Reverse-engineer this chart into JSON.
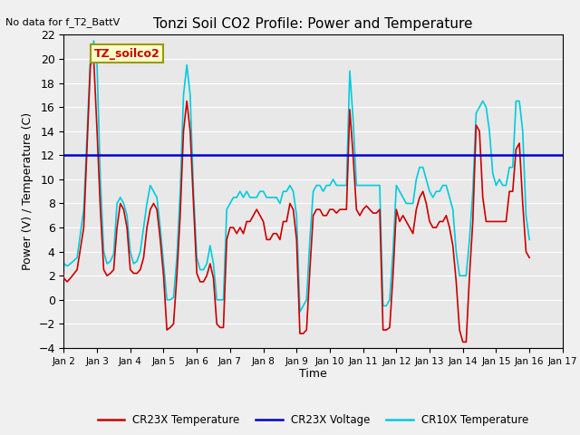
{
  "title": "Tonzi Soil CO2 Profile: Power and Temperature",
  "no_data_text": "No data for f_T2_BattV",
  "legend_box_text": "TZ_soilco2",
  "xlabel": "Time",
  "ylabel": "Power (V) / Temperature (C)",
  "ylim": [
    -4,
    22
  ],
  "yticks": [
    -4,
    -2,
    0,
    2,
    4,
    6,
    8,
    10,
    12,
    14,
    16,
    18,
    20,
    22
  ],
  "xlim_days": [
    1,
    16
  ],
  "xtick_positions": [
    1,
    2,
    3,
    4,
    5,
    6,
    7,
    8,
    9,
    10,
    11,
    12,
    13,
    14,
    15,
    16
  ],
  "xtick_labels": [
    "Jan 2",
    "Jan 3",
    "Jan 4",
    "Jan 5",
    "Jan 6",
    "Jan 7",
    "Jan 8",
    "Jan 9",
    "Jan 10",
    "Jan 11",
    "Jan 12",
    "Jan 13",
    "Jan 14",
    "Jan 15",
    "Jan 16",
    "Jan 17"
  ],
  "voltage_value": 12.0,
  "cr23x_color": "#cc0000",
  "voltage_color": "#0000cc",
  "cr10x_color": "#00ccdd",
  "background_color": "#e8e8e8",
  "legend_entries": [
    "CR23X Temperature",
    "CR23X Voltage",
    "CR10X Temperature"
  ],
  "cr23x_x": [
    0.0,
    0.1,
    0.2,
    0.35,
    0.5,
    0.65,
    0.8,
    1.0,
    1.1,
    1.2,
    1.4,
    1.6,
    1.8,
    1.9,
    2.0,
    2.1,
    2.2,
    2.3,
    2.4,
    2.5,
    2.6,
    2.7,
    2.8,
    2.9,
    3.0,
    3.1,
    3.2,
    3.3,
    3.4,
    3.5,
    3.6,
    3.7,
    3.8,
    3.9,
    4.0,
    4.1,
    4.2,
    4.3,
    4.4,
    4.5,
    4.6,
    4.7,
    4.8,
    4.9,
    5.0,
    5.1,
    5.2,
    5.3,
    5.4,
    5.5,
    5.6,
    5.7,
    5.8,
    5.9,
    6.0,
    6.1,
    6.2,
    6.3,
    6.4,
    6.5,
    6.6,
    6.7,
    6.8,
    6.9,
    7.0,
    7.1,
    7.2,
    7.3,
    7.4,
    7.5,
    7.6,
    7.7,
    7.8,
    7.9,
    8.0,
    8.1,
    8.2,
    8.3,
    8.4,
    8.5,
    8.6,
    8.7,
    8.8,
    8.9,
    9.0,
    9.1,
    9.2,
    9.3,
    9.4,
    9.5,
    9.6,
    9.7,
    9.8,
    9.9,
    10.0,
    10.1,
    10.2,
    10.3,
    10.4,
    10.5,
    10.6,
    10.7,
    10.8,
    10.9,
    11.0,
    11.1,
    11.2,
    11.3,
    11.4,
    11.5,
    11.6,
    11.7,
    11.8,
    11.9,
    12.0,
    12.1,
    12.2,
    12.3,
    12.4,
    12.5,
    12.6,
    12.7,
    12.8,
    12.9,
    13.0,
    13.1,
    13.2,
    13.3,
    13.4,
    13.5,
    13.6,
    13.7,
    13.8,
    13.9,
    14.0,
    14.1,
    14.2,
    14.3,
    14.4,
    14.5,
    14.6,
    14.7,
    14.8,
    14.9,
    15.0
  ],
  "cr23x_y": [
    0.5,
    2.0,
    5.0,
    12.0,
    19.0,
    14.0,
    5.0,
    1.8,
    1.5,
    1.8,
    2.5,
    6.0,
    19.5,
    20.0,
    14.0,
    7.5,
    2.5,
    2.0,
    2.2,
    2.5,
    6.0,
    8.0,
    7.5,
    6.0,
    2.5,
    2.2,
    2.2,
    2.5,
    3.5,
    6.0,
    7.5,
    8.0,
    7.5,
    5.0,
    2.0,
    -2.5,
    -2.3,
    -2.0,
    2.0,
    7.0,
    14.0,
    16.5,
    14.0,
    8.0,
    2.2,
    1.5,
    1.5,
    2.0,
    3.0,
    1.8,
    -2.0,
    -2.3,
    -2.3,
    5.0,
    6.0,
    6.0,
    5.5,
    6.0,
    5.5,
    6.5,
    6.5,
    7.0,
    7.5,
    7.0,
    6.5,
    5.0,
    5.0,
    5.5,
    5.5,
    5.0,
    6.5,
    6.5,
    8.0,
    7.5,
    5.0,
    -2.8,
    -2.8,
    -2.5,
    2.5,
    7.0,
    7.5,
    7.5,
    7.0,
    7.0,
    7.5,
    7.5,
    7.2,
    7.5,
    7.5,
    7.5,
    15.8,
    12.0,
    7.5,
    7.0,
    7.5,
    7.8,
    7.5,
    7.2,
    7.2,
    7.5,
    -2.5,
    -2.5,
    -2.3,
    2.0,
    7.5,
    6.5,
    7.0,
    6.5,
    6.0,
    5.5,
    7.5,
    8.5,
    9.0,
    8.0,
    6.5,
    6.0,
    6.0,
    6.5,
    6.5,
    7.0,
    6.0,
    4.5,
    1.5,
    -2.5,
    -3.5,
    -3.5,
    2.0,
    6.5,
    14.5,
    14.0,
    8.5,
    6.5,
    6.5,
    6.5,
    6.5,
    6.5,
    6.5,
    6.5,
    9.0,
    9.0,
    12.5,
    13.0,
    8.0,
    4.0,
    3.5
  ],
  "cr10x_x": [
    0.0,
    0.1,
    0.2,
    0.35,
    0.5,
    0.65,
    0.8,
    1.0,
    1.1,
    1.2,
    1.4,
    1.6,
    1.8,
    1.9,
    2.0,
    2.1,
    2.2,
    2.3,
    2.4,
    2.5,
    2.6,
    2.7,
    2.8,
    2.9,
    3.0,
    3.1,
    3.2,
    3.3,
    3.4,
    3.5,
    3.6,
    3.7,
    3.8,
    3.9,
    4.0,
    4.1,
    4.2,
    4.3,
    4.4,
    4.5,
    4.6,
    4.7,
    4.8,
    4.9,
    5.0,
    5.1,
    5.2,
    5.3,
    5.4,
    5.5,
    5.6,
    5.7,
    5.8,
    5.9,
    6.0,
    6.1,
    6.2,
    6.3,
    6.4,
    6.5,
    6.6,
    6.7,
    6.8,
    6.9,
    7.0,
    7.1,
    7.2,
    7.3,
    7.4,
    7.5,
    7.6,
    7.7,
    7.8,
    7.9,
    8.0,
    8.1,
    8.2,
    8.3,
    8.4,
    8.5,
    8.6,
    8.7,
    8.8,
    8.9,
    9.0,
    9.1,
    9.2,
    9.3,
    9.4,
    9.5,
    9.6,
    9.7,
    9.8,
    9.9,
    10.0,
    10.1,
    10.2,
    10.3,
    10.4,
    10.5,
    10.6,
    10.7,
    10.8,
    10.9,
    11.0,
    11.1,
    11.2,
    11.3,
    11.4,
    11.5,
    11.6,
    11.7,
    11.8,
    11.9,
    12.0,
    12.1,
    12.2,
    12.3,
    12.4,
    12.5,
    12.6,
    12.7,
    12.8,
    12.9,
    13.0,
    13.1,
    13.2,
    13.3,
    13.4,
    13.5,
    13.6,
    13.7,
    13.8,
    13.9,
    14.0,
    14.1,
    14.2,
    14.3,
    14.4,
    14.5,
    14.6,
    14.7,
    14.8,
    14.9,
    15.0
  ],
  "cr10x_y": [
    2.5,
    3.5,
    8.0,
    15.0,
    20.0,
    16.0,
    8.0,
    3.0,
    2.8,
    3.0,
    3.5,
    7.5,
    20.0,
    21.5,
    19.5,
    10.0,
    4.0,
    3.0,
    3.2,
    3.8,
    8.0,
    8.5,
    8.0,
    7.0,
    4.0,
    3.0,
    3.2,
    4.0,
    6.0,
    8.0,
    9.5,
    9.0,
    8.5,
    6.0,
    3.0,
    0.0,
    0.0,
    0.2,
    3.5,
    9.0,
    17.0,
    19.5,
    17.0,
    9.0,
    3.5,
    2.5,
    2.5,
    3.0,
    4.5,
    3.0,
    0.0,
    0.0,
    0.0,
    7.5,
    8.0,
    8.5,
    8.5,
    9.0,
    8.5,
    9.0,
    8.5,
    8.5,
    8.5,
    9.0,
    9.0,
    8.5,
    8.5,
    8.5,
    8.5,
    8.0,
    9.0,
    9.0,
    9.5,
    9.0,
    7.0,
    -1.0,
    -0.5,
    0.0,
    5.0,
    9.0,
    9.5,
    9.5,
    9.0,
    9.5,
    9.5,
    10.0,
    9.5,
    9.5,
    9.5,
    9.5,
    19.0,
    15.0,
    9.5,
    9.5,
    9.5,
    9.5,
    9.5,
    9.5,
    9.5,
    9.5,
    -0.5,
    -0.5,
    0.0,
    4.0,
    9.5,
    9.0,
    8.5,
    8.0,
    8.0,
    8.0,
    10.0,
    11.0,
    11.0,
    10.0,
    9.0,
    8.5,
    9.0,
    9.0,
    9.5,
    9.5,
    8.5,
    7.5,
    4.0,
    2.0,
    2.0,
    2.0,
    5.0,
    9.0,
    15.5,
    16.0,
    16.5,
    16.0,
    14.0,
    10.5,
    9.5,
    10.0,
    9.5,
    9.5,
    11.0,
    11.0,
    16.5,
    16.5,
    14.0,
    7.0,
    5.0
  ]
}
